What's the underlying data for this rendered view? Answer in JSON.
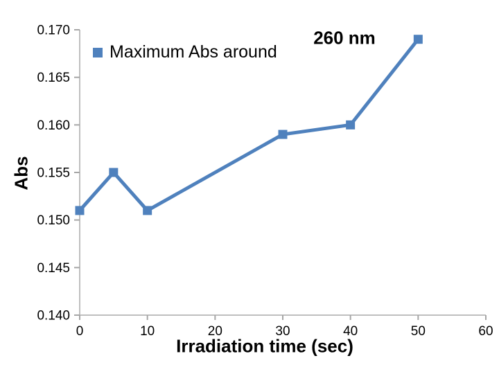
{
  "chart_data": {
    "type": "line",
    "title": "",
    "series": [
      {
        "name": "Maximum Abs around",
        "x": [
          0,
          5,
          10,
          30,
          40,
          50
        ],
        "y": [
          0.151,
          0.155,
          0.151,
          0.159,
          0.16,
          0.169
        ]
      }
    ],
    "xlabel": "Irradiation time (sec)",
    "ylabel": "Abs",
    "xlim": [
      0,
      60
    ],
    "ylim": [
      0.14,
      0.17
    ],
    "x_ticks": [
      0,
      10,
      20,
      30,
      40,
      50,
      60
    ],
    "y_ticks": [
      0.14,
      0.145,
      0.15,
      0.155,
      0.16,
      0.165,
      0.17
    ],
    "y_tick_decimals": 3,
    "annotation": "260 nm",
    "legend_position": "top-left-inside",
    "grid": false,
    "marker_shape": "square",
    "colors": {
      "series": "#4F81BD",
      "axis": "#BFBFBF",
      "tick": "#A6A6A6",
      "text": "#000000"
    }
  }
}
